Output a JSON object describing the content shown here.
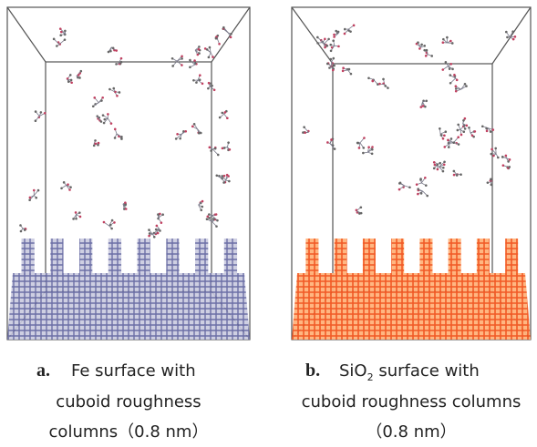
{
  "panels": [
    {
      "label": "a.",
      "caption_lines": [
        "Fe surface with",
        "cuboid roughness",
        "columns（0.8 nm）"
      ]
    },
    {
      "label": "b.",
      "caption_lines": [
        "SiO",
        "2",
        " surface with",
        "cuboid roughness columns",
        "（0.8 nm）"
      ]
    }
  ]
}
